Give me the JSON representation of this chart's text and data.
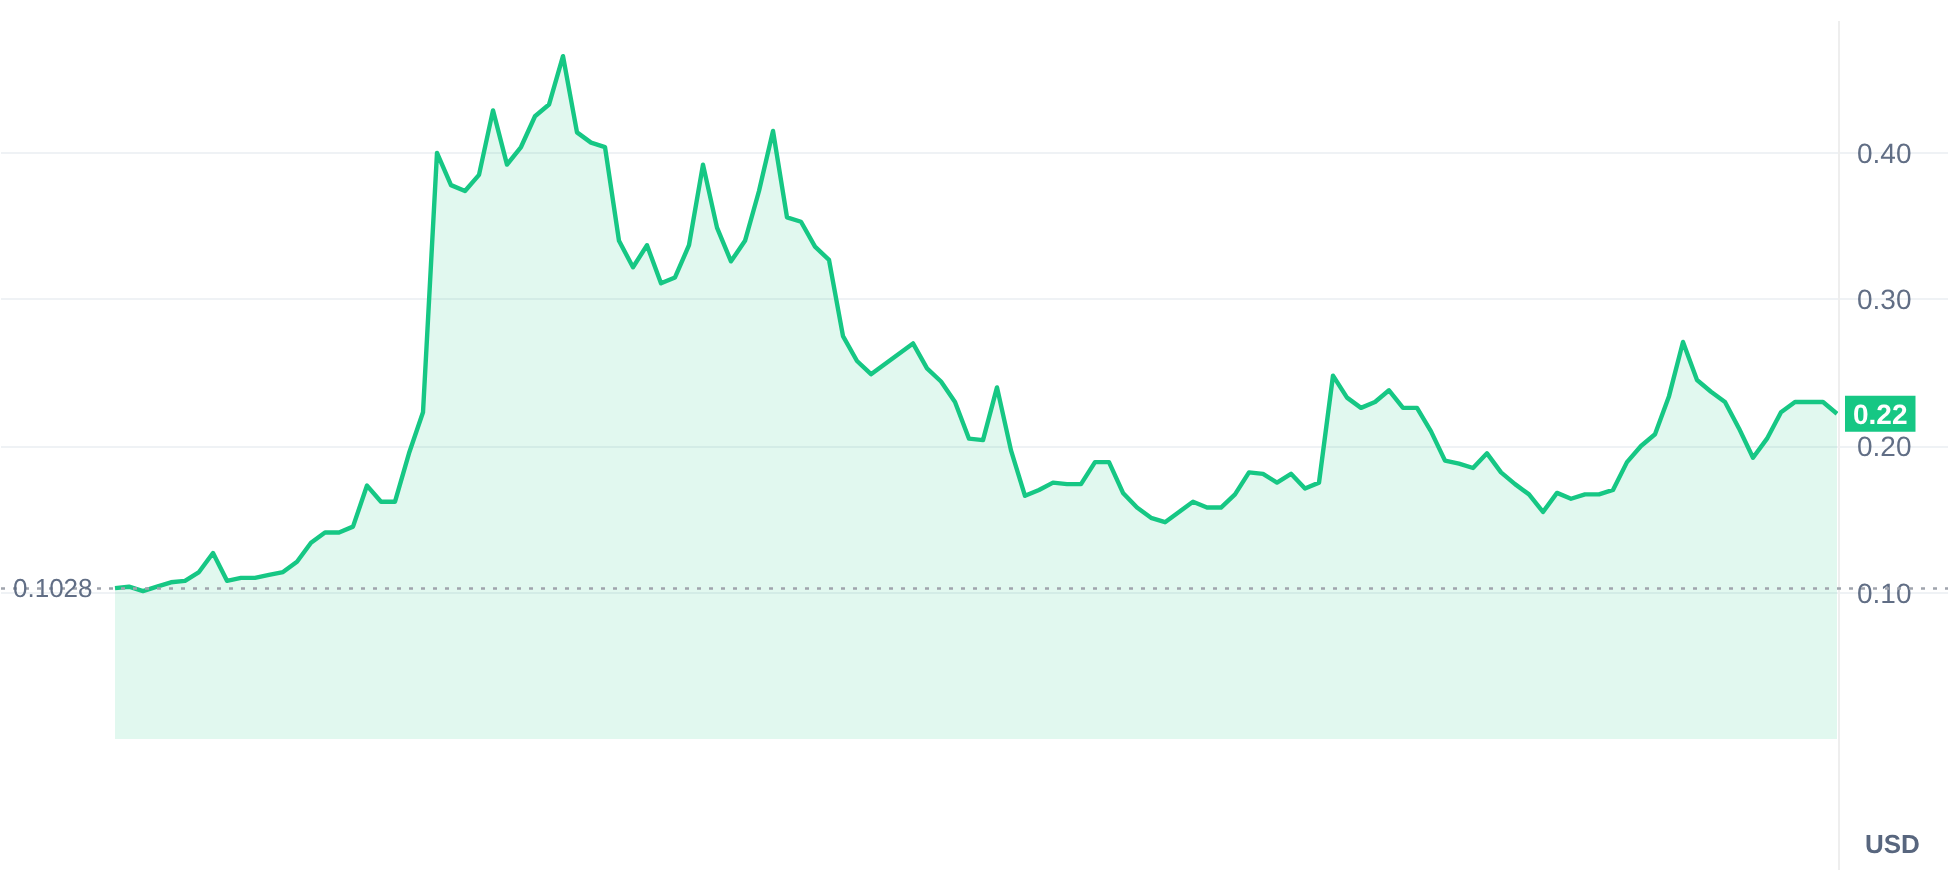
{
  "chart_data": {
    "type": "area",
    "categories": [
      null,
      null,
      null,
      null,
      null,
      null,
      null,
      null,
      null,
      null,
      null,
      null,
      null,
      null,
      null,
      null,
      null,
      null,
      null,
      null,
      null,
      null,
      null,
      null,
      null,
      null,
      null,
      null,
      null,
      null,
      null,
      null,
      null,
      null,
      null,
      null,
      null,
      null,
      null,
      null,
      null,
      null,
      null,
      null,
      null,
      null,
      null,
      null,
      null,
      null,
      null,
      null,
      null,
      null,
      null,
      null,
      null,
      null,
      null,
      null,
      null,
      null,
      null,
      null,
      null,
      null,
      null,
      null,
      null,
      null,
      null,
      null,
      null,
      null,
      null,
      null,
      null,
      null,
      null,
      null,
      null,
      null,
      null,
      null,
      null,
      null,
      null,
      null,
      null,
      null,
      null,
      null,
      null,
      null,
      null,
      null,
      null,
      null,
      null,
      null,
      null,
      null,
      null,
      null,
      null,
      null,
      null,
      null,
      null,
      null,
      null,
      null,
      null,
      null,
      null,
      null,
      null,
      null,
      null,
      null,
      null,
      null,
      null,
      null
    ],
    "series": [
      {
        "color": "#16c784",
        "values": [
          0.103,
          0.104,
          0.101,
          0.104,
          0.107,
          0.108,
          0.114,
          0.127,
          0.108,
          0.11,
          0.11,
          0.112,
          0.114,
          0.121,
          0.134,
          0.141,
          0.141,
          0.145,
          0.173,
          0.162,
          0.162,
          0.195,
          0.223,
          0.4,
          0.378,
          0.374,
          0.385,
          0.429,
          0.392,
          0.404,
          0.425,
          0.433,
          0.466,
          0.414,
          0.407,
          0.404,
          0.34,
          0.322,
          0.337,
          0.311,
          0.315,
          0.337,
          0.392,
          0.349,
          0.326,
          0.34,
          0.374,
          0.415,
          0.356,
          0.353,
          0.336,
          0.327,
          0.275,
          0.258,
          0.249,
          0.256,
          0.263,
          0.27,
          0.253,
          0.244,
          0.23,
          0.205,
          0.204,
          0.24,
          0.197,
          0.166,
          0.17,
          0.175,
          0.174,
          0.174,
          0.189,
          0.189,
          0.168,
          0.158,
          0.151,
          0.148,
          0.155,
          0.162,
          0.158,
          0.158,
          0.167,
          0.182,
          0.181,
          0.175,
          0.181,
          0.171,
          0.175,
          0.248,
          0.233,
          0.226,
          0.23,
          0.238,
          0.226,
          0.226,
          0.21,
          0.19,
          0.188,
          0.185,
          0.195,
          0.182,
          0.174,
          0.167,
          0.155,
          0.168,
          0.164,
          0.167,
          0.167,
          0.17,
          0.189,
          0.2,
          0.208,
          0.234,
          0.271,
          0.245,
          0.237,
          0.23,
          0.212,
          0.192,
          0.205,
          0.223,
          0.23,
          0.23,
          0.23,
          0.222
        ]
      }
    ],
    "ylim": [
      -0.09,
      0.49
    ],
    "yticks": [
      {
        "value": 0.1,
        "label": "0.10"
      },
      {
        "value": 0.2,
        "label": "0.20"
      },
      {
        "value": 0.3,
        "label": "0.30"
      },
      {
        "value": 0.4,
        "label": "0.40"
      }
    ],
    "tick_labels": "y",
    "grid": "y",
    "ref_lines": [
      {
        "axis": "y",
        "value": 0.1028,
        "label": "0.1028",
        "line_style": "dotted",
        "color": "#a0a4ad"
      }
    ],
    "annotations": [
      "0.22",
      "USD"
    ]
  }
}
